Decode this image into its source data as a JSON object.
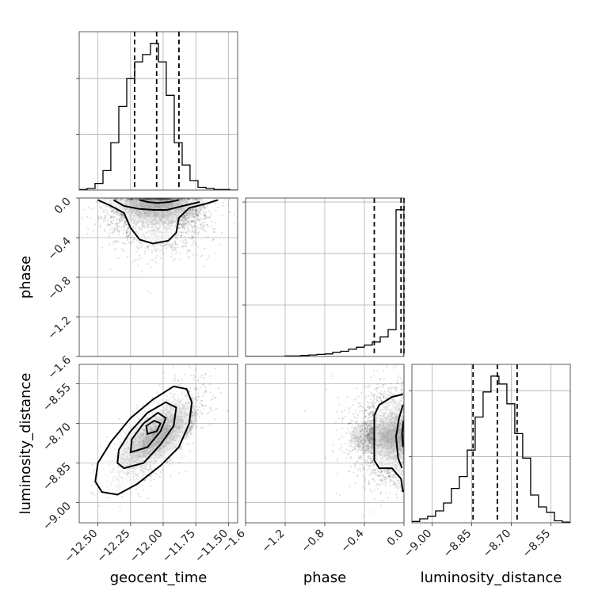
{
  "chart_data": {
    "type": "corner",
    "parameters": [
      "geocent_time",
      "phase",
      "luminosity_distance"
    ],
    "grid": true,
    "scales": {
      "geocent_time": {
        "range": [
          -12.6434,
          -11.4293
        ],
        "ticks": [
          -12.5,
          -12.25,
          -12.0,
          -11.75,
          -11.5
        ],
        "tick_labels": [
          "−12.50",
          "−12.25",
          "−12.00",
          "−11.75",
          "−11.50"
        ]
      },
      "phase": {
        "range": [
          -1.6,
          0.0
        ],
        "ticks": [
          -1.6,
          -1.2,
          -0.8,
          -0.4,
          0.0
        ],
        "tick_labels": [
          "−1.6",
          "−1.2",
          "−0.8",
          "−0.4",
          "0.0"
        ]
      },
      "luminosity_distance": {
        "range": [
          -9.0766,
          -8.4766
        ],
        "ticks": [
          -9.0,
          -8.85,
          -8.7,
          -8.55
        ],
        "tick_labels": [
          "−9.00",
          "−8.85",
          "−8.70",
          "−8.55"
        ]
      }
    },
    "histograms": [
      {
        "parameter": "geocent_time",
        "bin_edges": [
          -12.643,
          -12.583,
          -12.522,
          -12.461,
          -12.401,
          -12.34,
          -12.279,
          -12.218,
          -12.158,
          -12.097,
          -12.036,
          -11.976,
          -11.915,
          -11.854,
          -11.794,
          -11.733,
          -11.672,
          -11.611,
          -11.551,
          -11.49,
          -11.429
        ],
        "counts": [
          1,
          3,
          12,
          35,
          85,
          150,
          200,
          230,
          243,
          263,
          230,
          170,
          85,
          45,
          17,
          5,
          3,
          1,
          1,
          0
        ],
        "quantiles": [
          -12.219,
          -12.05,
          -11.879
        ]
      },
      {
        "parameter": "phase",
        "bin_edges": [
          -1.6,
          -1.52,
          -1.44,
          -1.36,
          -1.28,
          -1.2,
          -1.12,
          -1.04,
          -0.96,
          -0.88,
          -0.8,
          -0.72,
          -0.64,
          -0.56,
          -0.48,
          -0.4,
          -0.32,
          -0.24,
          -0.16,
          -0.08,
          0.0
        ],
        "counts": [
          0,
          0,
          0,
          0,
          0,
          1,
          1,
          2,
          3,
          4,
          5,
          8,
          10,
          14,
          18,
          22,
          28,
          38,
          52,
          285
        ],
        "quantiles": [
          -0.3,
          -0.03,
          0.0
        ]
      },
      {
        "parameter": "luminosity_distance",
        "bin_edges": [
          -9.077,
          -9.047,
          -9.017,
          -8.987,
          -8.957,
          -8.927,
          -8.897,
          -8.867,
          -8.837,
          -8.807,
          -8.777,
          -8.747,
          -8.717,
          -8.687,
          -8.657,
          -8.627,
          -8.597,
          -8.567,
          -8.537,
          -8.507,
          -8.477
        ],
        "counts": [
          2,
          6,
          10,
          18,
          30,
          52,
          70,
          110,
          160,
          198,
          222,
          210,
          180,
          135,
          98,
          42,
          24,
          16,
          3,
          1
        ],
        "quantiles": [
          -8.845,
          -8.753,
          -8.678
        ]
      }
    ],
    "scatter_2d": [
      {
        "x_param": "geocent_time",
        "y_param": "phase",
        "mean": [
          -12.05,
          -0.06
        ],
        "std": [
          0.18,
          0.22
        ],
        "rho": 0,
        "fold_y_max": 0.0,
        "n_points": 2600,
        "contours": [
          [
            [
              -12.5,
              -0.02
            ],
            [
              -12.4,
              -0.08
            ],
            [
              -12.3,
              -0.15
            ],
            [
              -12.25,
              -0.3
            ],
            [
              -12.18,
              -0.42
            ],
            [
              -12.08,
              -0.46
            ],
            [
              -11.96,
              -0.43
            ],
            [
              -11.9,
              -0.35
            ],
            [
              -11.88,
              -0.2
            ],
            [
              -11.8,
              -0.1
            ],
            [
              -11.68,
              -0.06
            ],
            [
              -11.58,
              -0.02
            ]
          ],
          [
            [
              -12.38,
              -0.02
            ],
            [
              -12.3,
              -0.08
            ],
            [
              -12.18,
              -0.11
            ],
            [
              -12.07,
              -0.12
            ],
            [
              -11.97,
              -0.12
            ],
            [
              -11.85,
              -0.08
            ],
            [
              -11.72,
              -0.04
            ]
          ],
          [
            [
              -12.18,
              -0.02
            ],
            [
              -12.12,
              -0.04
            ],
            [
              -12.04,
              -0.05
            ],
            [
              -11.95,
              -0.04
            ],
            [
              -11.88,
              -0.02
            ]
          ]
        ]
      },
      {
        "x_param": "geocent_time",
        "y_param": "luminosity_distance",
        "mean": [
          -12.05,
          -8.75
        ],
        "std": [
          0.16,
          0.085
        ],
        "rho": 0.72,
        "n_points": 2600,
        "contours": [
          [
            [
              -12.47,
              -8.96
            ],
            [
              -12.35,
              -8.97
            ],
            [
              -12.2,
              -8.93
            ],
            [
              -12.02,
              -8.86
            ],
            [
              -11.88,
              -8.79
            ],
            [
              -11.8,
              -8.7
            ],
            [
              -11.78,
              -8.62
            ],
            [
              -11.82,
              -8.57
            ],
            [
              -11.92,
              -8.56
            ],
            [
              -12.08,
              -8.61
            ],
            [
              -12.25,
              -8.68
            ],
            [
              -12.4,
              -8.77
            ],
            [
              -12.5,
              -8.85
            ],
            [
              -12.52,
              -8.92
            ]
          ],
          [
            [
              -12.3,
              -8.87
            ],
            [
              -12.15,
              -8.85
            ],
            [
              -12.02,
              -8.78
            ],
            [
              -11.92,
              -8.71
            ],
            [
              -11.9,
              -8.64
            ],
            [
              -11.98,
              -8.62
            ],
            [
              -12.12,
              -8.66
            ],
            [
              -12.25,
              -8.73
            ],
            [
              -12.34,
              -8.8
            ],
            [
              -12.35,
              -8.85
            ]
          ],
          [
            [
              -12.25,
              -8.81
            ],
            [
              -12.12,
              -8.79
            ],
            [
              -12.02,
              -8.73
            ],
            [
              -11.98,
              -8.68
            ],
            [
              -12.04,
              -8.66
            ],
            [
              -12.15,
              -8.7
            ],
            [
              -12.24,
              -8.76
            ]
          ],
          [
            [
              -12.12,
              -8.74
            ],
            [
              -12.05,
              -8.73
            ],
            [
              -12.02,
              -8.7
            ],
            [
              -12.07,
              -8.69
            ],
            [
              -12.13,
              -8.71
            ]
          ]
        ]
      },
      {
        "x_param": "phase",
        "y_param": "luminosity_distance",
        "mean": [
          -0.06,
          -8.75
        ],
        "std": [
          0.22,
          0.085
        ],
        "rho": 0,
        "fold_x_max": 0.0,
        "n_points": 2600,
        "contours": [
          [
            [
              -0.01,
              -8.59
            ],
            [
              -0.12,
              -8.6
            ],
            [
              -0.25,
              -8.63
            ],
            [
              -0.3,
              -8.67
            ],
            [
              -0.3,
              -8.84
            ],
            [
              -0.25,
              -8.87
            ],
            [
              -0.12,
              -8.87
            ],
            [
              -0.03,
              -8.91
            ],
            [
              -0.01,
              -8.96
            ]
          ],
          [
            [
              -0.01,
              -8.63
            ],
            [
              -0.05,
              -8.68
            ],
            [
              -0.08,
              -8.75
            ],
            [
              -0.06,
              -8.83
            ],
            [
              -0.02,
              -8.87
            ]
          ],
          [
            [
              -0.005,
              -8.69
            ],
            [
              -0.02,
              -8.74
            ],
            [
              -0.01,
              -8.79
            ]
          ]
        ]
      }
    ]
  }
}
